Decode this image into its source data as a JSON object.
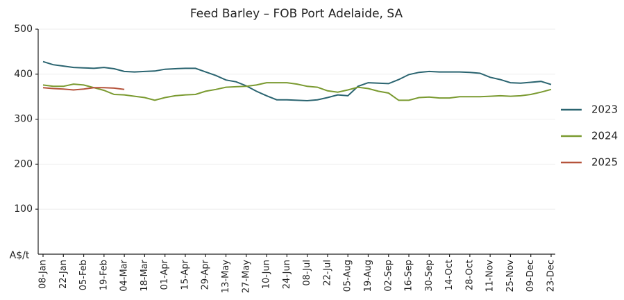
{
  "chart_data": {
    "type": "line",
    "title": "Feed Barley – FOB Port Adelaide, SA",
    "y_label": "A$/t",
    "categories": [
      "08-Jan",
      null,
      "22-Jan",
      null,
      "05-Feb",
      null,
      "19-Feb",
      null,
      "04-Mar",
      null,
      "18-Mar",
      null,
      "01-Apr",
      null,
      "15-Apr",
      null,
      "29-Apr",
      null,
      "13-May",
      null,
      "27-May",
      null,
      "10-Jun",
      null,
      "24-Jun",
      null,
      "08-Jul",
      null,
      "22-Jul",
      null,
      "05-Aug",
      null,
      "19-Aug",
      null,
      "02-Sep",
      null,
      "16-Sep",
      null,
      "30-Sep",
      null,
      "14-Oct",
      null,
      "28-Oct",
      null,
      "11-Nov",
      null,
      "25-Nov",
      null,
      "09-Dec",
      null,
      "23-Dec"
    ],
    "series": [
      {
        "name": "2023",
        "color": "#2a6470",
        "values": [
          428,
          421,
          418,
          415,
          414,
          413,
          415,
          412,
          406,
          405,
          406,
          407,
          411,
          412,
          413,
          413,
          405,
          397,
          387,
          383,
          374,
          362,
          352,
          343,
          343,
          342,
          341,
          343,
          348,
          354,
          352,
          373,
          381,
          380,
          379,
          388,
          399,
          404,
          406,
          405,
          405,
          405,
          404,
          402,
          393,
          388,
          381,
          380,
          382,
          384,
          377
        ]
      },
      {
        "name": "2024",
        "color": "#7a9a30",
        "values": [
          376,
          373,
          373,
          378,
          376,
          370,
          364,
          355,
          354,
          351,
          348,
          342,
          348,
          352,
          354,
          355,
          362,
          366,
          371,
          372,
          373,
          376,
          381,
          381,
          381,
          378,
          373,
          371,
          363,
          360,
          365,
          371,
          368,
          362,
          358,
          342,
          342,
          348,
          349,
          347,
          347,
          350,
          350,
          350,
          351,
          352,
          351,
          352,
          355,
          360,
          366
        ]
      },
      {
        "name": "2025",
        "color": "#b5533b",
        "values": [
          370,
          368,
          367,
          365,
          367,
          370,
          370,
          369,
          366,
          null,
          null,
          null,
          null,
          null,
          null,
          null,
          null,
          null,
          null,
          null,
          null,
          null,
          null,
          null,
          null,
          null,
          null,
          null,
          null,
          null,
          null,
          null,
          null,
          null,
          null,
          null,
          null,
          null,
          null,
          null,
          null,
          null,
          null,
          null,
          null,
          null,
          null,
          null,
          null,
          null,
          null
        ]
      }
    ],
    "ylim": [
      0,
      500
    ],
    "yticks": [
      100,
      200,
      300,
      400,
      500
    ],
    "grid": true,
    "legend": "right"
  }
}
